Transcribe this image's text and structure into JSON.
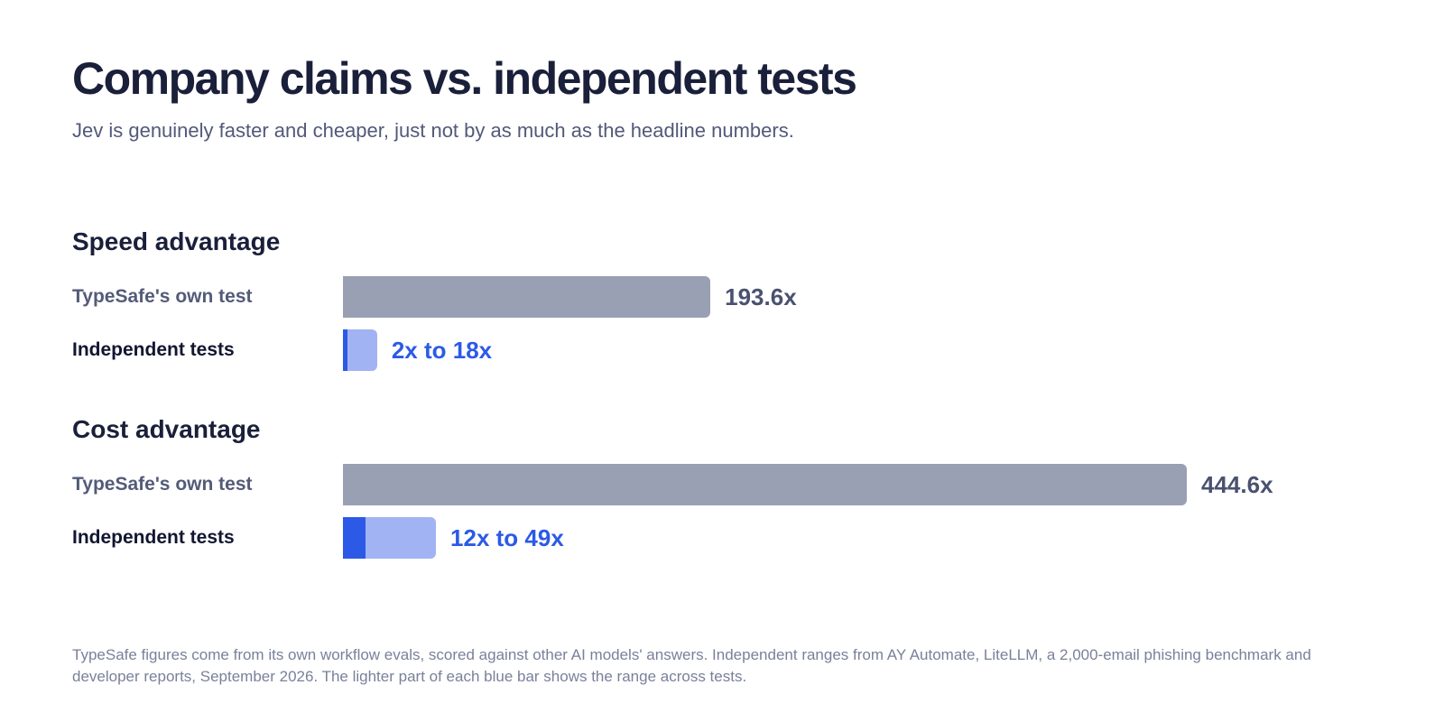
{
  "title": "Company claims vs. independent tests",
  "subtitle": "Jev is genuinely faster and cheaper, just not by as much as the headline numbers.",
  "footnote": "TypeSafe figures come from its own workflow evals, scored against other AI models' answers. Independent ranges from AY Automate, LiteLLM, a 2,000-email phishing benchmark and developer reports, September 2026. The lighter part of each blue bar shows the range across tests.",
  "colors": {
    "claim_bar": "#9aa0b3",
    "independent_low": "#2c5ae6",
    "independent_range": "#a2b3f4",
    "title": "#1a1f3a"
  },
  "chart_data": {
    "type": "bar",
    "orientation": "horizontal",
    "xlim": [
      0,
      444.6
    ],
    "grid": false,
    "groups": [
      {
        "title": "Speed advantage",
        "claim": {
          "label": "TypeSafe's own test",
          "value": 193.6,
          "value_label": "193.6x"
        },
        "independent": {
          "label": "Independent tests",
          "low": 2,
          "high": 18,
          "value_label": "2x to 18x"
        }
      },
      {
        "title": "Cost advantage",
        "claim": {
          "label": "TypeSafe's own test",
          "value": 444.6,
          "value_label": "444.6x"
        },
        "independent": {
          "label": "Independent tests",
          "low": 12,
          "high": 49,
          "value_label": "12x to 49x"
        }
      }
    ]
  }
}
